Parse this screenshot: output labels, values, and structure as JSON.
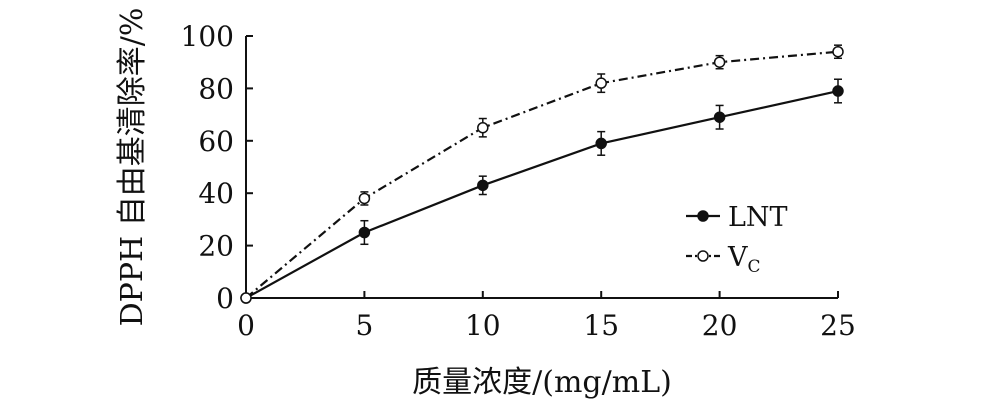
{
  "chart_data": {
    "type": "line",
    "title": "",
    "xlabel": "质量浓度/(mg/mL)",
    "ylabel": "DPPH 自由基清除率/%",
    "xlim": [
      0,
      25
    ],
    "ylim": [
      0,
      100
    ],
    "x_ticks": [
      0,
      5,
      10,
      15,
      20,
      25
    ],
    "y_ticks": [
      0,
      20,
      40,
      60,
      80,
      100
    ],
    "x_tick_labels": [
      "0",
      "5",
      "10",
      "15",
      "20",
      "25"
    ],
    "y_tick_labels": [
      "0",
      "20",
      "40",
      "60",
      "80",
      "100"
    ],
    "grid": false,
    "legend_position": "right",
    "x": [
      0,
      5,
      10,
      15,
      20,
      25
    ],
    "series": [
      {
        "name": "LNT",
        "legend_label": "LNT",
        "values": [
          0,
          25,
          43,
          59,
          69,
          79
        ],
        "errors": [
          0,
          4.5,
          3.5,
          4.5,
          4.5,
          4.5
        ],
        "line_style": "solid",
        "marker": "filled-circle",
        "color": "#111111"
      },
      {
        "name": "VC",
        "legend_label": "V",
        "legend_sub": "C",
        "values": [
          0,
          38,
          65,
          82,
          90,
          94
        ],
        "errors": [
          0,
          2.5,
          3.5,
          3.5,
          2.5,
          2.5
        ],
        "line_style": "dash-dot",
        "marker": "open-circle",
        "color": "#111111"
      }
    ]
  }
}
